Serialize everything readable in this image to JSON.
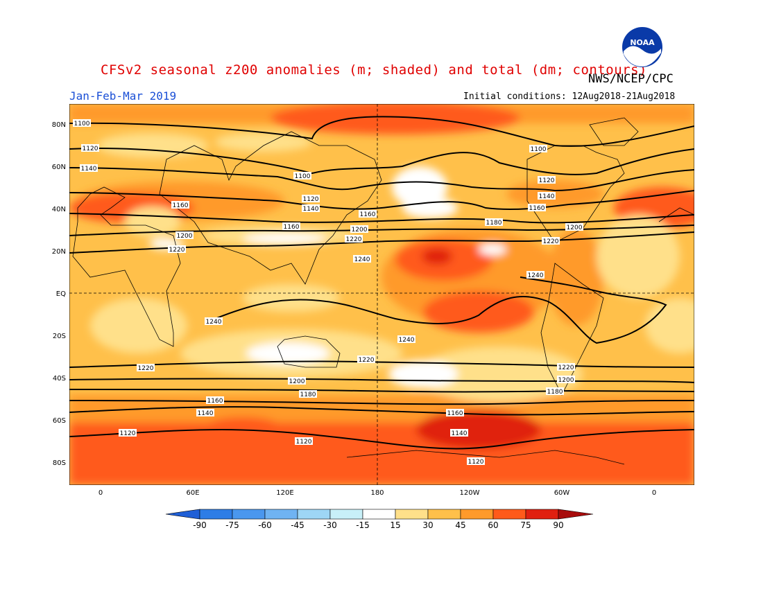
{
  "header": {
    "title": "CFSv2 seasonal z200 anomalies (m; shaded) and total (dm; contours)",
    "agency": "NWS/NCEP/CPC",
    "period": "Jan-Feb-Mar 2019",
    "initial_conditions": "Initial conditions: 12Aug2018-21Aug2018",
    "logo_text": "NOAA"
  },
  "map": {
    "lat_labels": [
      "80N",
      "60N",
      "40N",
      "20N",
      "EQ",
      "20S",
      "40S",
      "60S",
      "80S"
    ],
    "lon_labels": [
      "0",
      "60E",
      "120E",
      "180",
      "120W",
      "60W",
      "0"
    ],
    "contour_labels": [
      "1100",
      "1120",
      "1140",
      "1160",
      "1180",
      "1200",
      "1220",
      "1240"
    ]
  },
  "colorbar": {
    "labels": [
      "-90",
      "-75",
      "-60",
      "-45",
      "-30",
      "-15",
      "15",
      "30",
      "45",
      "60",
      "75",
      "90"
    ],
    "colors": [
      "#1f5fd6",
      "#2d7de6",
      "#4a97ee",
      "#6fb3f2",
      "#9ed6f5",
      "#c8f0f8",
      "#ffffff",
      "#ffe08a",
      "#ffc04a",
      "#ff9a2a",
      "#ff5a1a",
      "#e02010",
      "#a80c0c"
    ]
  }
}
